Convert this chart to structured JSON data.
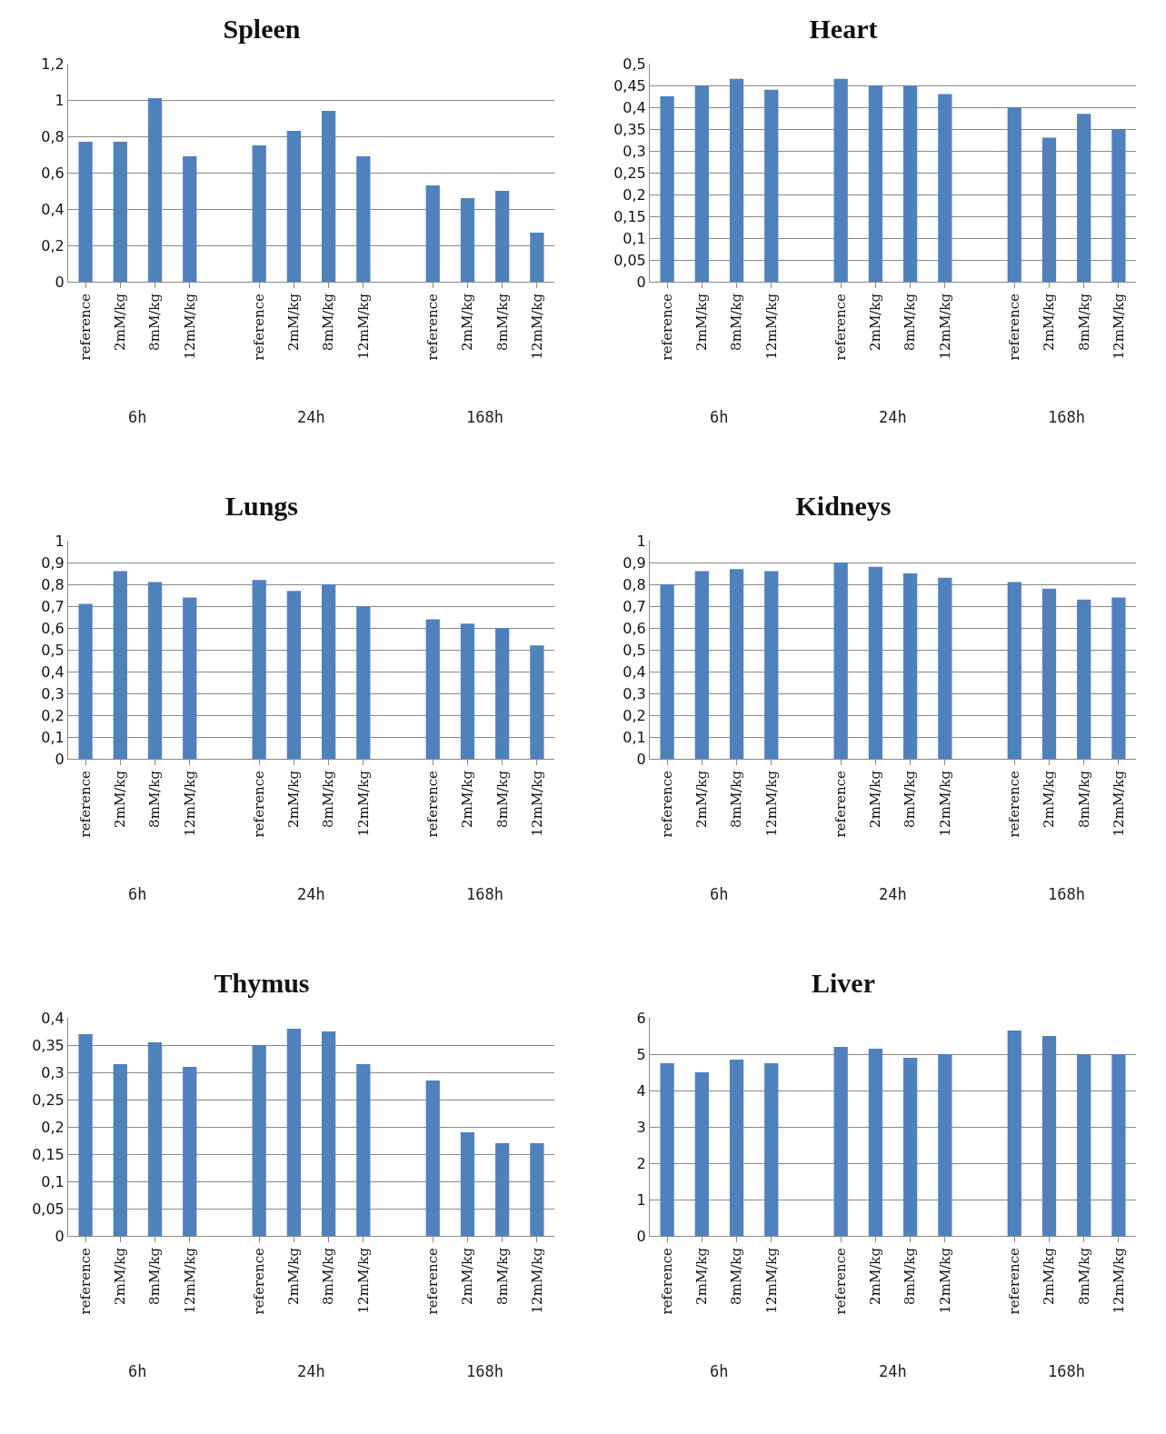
{
  "chart_data": [
    {
      "type": "bar",
      "title": "Spleen",
      "categories": [
        "reference",
        "2mM/kg",
        "8mM/kg",
        "12mM/kg",
        null,
        "reference",
        "2mM/kg",
        "8mM/kg",
        "12mM/kg",
        null,
        "reference",
        "2mM/kg",
        "8mM/kg",
        "12mM/kg"
      ],
      "values": [
        0.77,
        0.77,
        1.01,
        0.69,
        null,
        0.75,
        0.83,
        0.94,
        0.69,
        null,
        0.53,
        0.46,
        0.5,
        0.27
      ],
      "color": "#4f81bd",
      "ylim": [
        0,
        1.2
      ],
      "yticks": [
        0,
        {
          "value": 0.2,
          "label": "0,2"
        },
        {
          "value": 0.4,
          "label": "0,4"
        },
        {
          "value": 0.6,
          "label": "0,6"
        },
        {
          "value": 0.8,
          "label": "0,8"
        },
        1,
        {
          "value": 1.2,
          "label": "1,2"
        }
      ],
      "grid": "y",
      "annotations": [
        "6h",
        "24h",
        "168h"
      ]
    },
    {
      "type": "bar",
      "title": "Heart",
      "categories": [
        "reference",
        "2mM/kg",
        "8mM/kg",
        "12mM/kg",
        null,
        "reference",
        "2mM/kg",
        "8mM/kg",
        "12mM/kg",
        null,
        "reference",
        "2mM/kg",
        "8mM/kg",
        "12mM/kg"
      ],
      "values": [
        0.425,
        0.45,
        0.465,
        0.44,
        null,
        0.465,
        0.45,
        0.45,
        0.43,
        null,
        0.4,
        0.33,
        0.385,
        0.35
      ],
      "color": "#4f81bd",
      "ylim": [
        0,
        0.5
      ],
      "yticks": [
        0,
        {
          "value": 0.05,
          "label": "0,05"
        },
        {
          "value": 0.1,
          "label": "0,1"
        },
        {
          "value": 0.15,
          "label": "0,15"
        },
        {
          "value": 0.2,
          "label": "0,2"
        },
        {
          "value": 0.25,
          "label": "0,25"
        },
        {
          "value": 0.3,
          "label": "0,3"
        },
        {
          "value": 0.35,
          "label": "0,35"
        },
        {
          "value": 0.4,
          "label": "0,4"
        },
        {
          "value": 0.45,
          "label": "0,45"
        },
        {
          "value": 0.5,
          "label": "0,5"
        }
      ],
      "grid": "y",
      "annotations": [
        "6h",
        "24h",
        "168h"
      ]
    },
    {
      "type": "bar",
      "title": "Lungs",
      "categories": [
        "reference",
        "2mM/kg",
        "8mM/kg",
        "12mM/kg",
        null,
        "reference",
        "2mM/kg",
        "8mM/kg",
        "12mM/kg",
        null,
        "reference",
        "2mM/kg",
        "8mM/kg",
        "12mM/kg"
      ],
      "values": [
        0.71,
        0.86,
        0.81,
        0.74,
        null,
        0.82,
        0.77,
        0.8,
        0.7,
        null,
        0.64,
        0.62,
        0.6,
        0.52
      ],
      "color": "#4f81bd",
      "ylim": [
        0,
        1
      ],
      "yticks": [
        0,
        {
          "value": 0.1,
          "label": "0,1"
        },
        {
          "value": 0.2,
          "label": "0,2"
        },
        {
          "value": 0.3,
          "label": "0,3"
        },
        {
          "value": 0.4,
          "label": "0,4"
        },
        {
          "value": 0.5,
          "label": "0,5"
        },
        {
          "value": 0.6,
          "label": "0,6"
        },
        {
          "value": 0.7,
          "label": "0,7"
        },
        {
          "value": 0.8,
          "label": "0,8"
        },
        {
          "value": 0.9,
          "label": "0,9"
        },
        1
      ],
      "grid": "y",
      "annotations": [
        "6h",
        "24h",
        "168h"
      ]
    },
    {
      "type": "bar",
      "title": "Kidneys",
      "categories": [
        "reference",
        "2mM/kg",
        "8mM/kg",
        "12mM/kg",
        null,
        "reference",
        "2mM/kg",
        "8mM/kg",
        "12mM/kg",
        null,
        "reference",
        "2mM/kg",
        "8mM/kg",
        "12mM/kg"
      ],
      "values": [
        0.8,
        0.86,
        0.87,
        0.86,
        null,
        0.9,
        0.88,
        0.85,
        0.83,
        null,
        0.81,
        0.78,
        0.73,
        0.74
      ],
      "color": "#4f81bd",
      "ylim": [
        0,
        1
      ],
      "yticks": [
        0,
        {
          "value": 0.1,
          "label": "0,1"
        },
        {
          "value": 0.2,
          "label": "0,2"
        },
        {
          "value": 0.3,
          "label": "0,3"
        },
        {
          "value": 0.4,
          "label": "0,4"
        },
        {
          "value": 0.5,
          "label": "0,5"
        },
        {
          "value": 0.6,
          "label": "0,6"
        },
        {
          "value": 0.7,
          "label": "0,7"
        },
        {
          "value": 0.8,
          "label": "0,8"
        },
        {
          "value": 0.9,
          "label": "0,9"
        },
        1
      ],
      "grid": "y",
      "annotations": [
        "6h",
        "24h",
        "168h"
      ]
    },
    {
      "type": "bar",
      "title": "Thymus",
      "categories": [
        "reference",
        "2mM/kg",
        "8mM/kg",
        "12mM/kg",
        null,
        "reference",
        "2mM/kg",
        "8mM/kg",
        "12mM/kg",
        null,
        "reference",
        "2mM/kg",
        "8mM/kg",
        "12mM/kg"
      ],
      "values": [
        0.37,
        0.315,
        0.355,
        0.31,
        null,
        0.35,
        0.38,
        0.375,
        0.315,
        null,
        0.285,
        0.19,
        0.17,
        0.17
      ],
      "color": "#4f81bd",
      "ylim": [
        0,
        0.4
      ],
      "yticks": [
        0,
        {
          "value": 0.05,
          "label": "0,05"
        },
        {
          "value": 0.1,
          "label": "0,1"
        },
        {
          "value": 0.15,
          "label": "0,15"
        },
        {
          "value": 0.2,
          "label": "0,2"
        },
        {
          "value": 0.25,
          "label": "0,25"
        },
        {
          "value": 0.3,
          "label": "0,3"
        },
        {
          "value": 0.35,
          "label": "0,35"
        },
        {
          "value": 0.4,
          "label": "0,4"
        }
      ],
      "grid": "y",
      "annotations": [
        "6h",
        "24h",
        "168h"
      ]
    },
    {
      "type": "bar",
      "title": "Liver",
      "categories": [
        "reference",
        "2mM/kg",
        "8mM/kg",
        "12mM/kg",
        null,
        "reference",
        "2mM/kg",
        "8mM/kg",
        "12mM/kg",
        null,
        "reference",
        "2mM/kg",
        "8mM/kg",
        "12mM/kg"
      ],
      "values": [
        4.75,
        4.5,
        4.85,
        4.75,
        null,
        5.2,
        5.15,
        4.9,
        5.0,
        null,
        5.65,
        5.5,
        5.0,
        5.0
      ],
      "color": "#4f81bd",
      "ylim": [
        0,
        6
      ],
      "yticks": [
        0,
        1,
        2,
        3,
        4,
        5,
        6
      ],
      "grid": "y",
      "annotations": [
        "6h",
        "24h",
        "168h"
      ]
    }
  ]
}
